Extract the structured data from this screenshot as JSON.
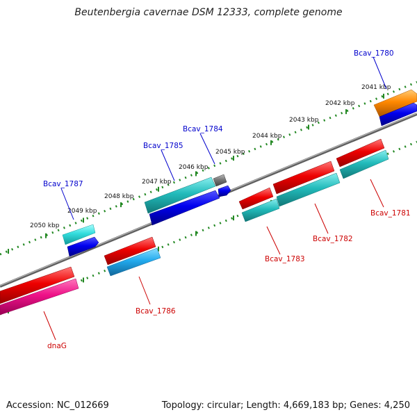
{
  "title": "Beutenbergia cavernae DSM 12333, complete genome",
  "accession": "Accession: NC_012669",
  "summary": "Topology: circular; Length: 4,669,183 bp; Genes: 4,250",
  "colors": {
    "forward_label": "#0000cc",
    "reverse_label": "#cc0000",
    "backbone": "#777777",
    "ticks": "#228822"
  },
  "kbp_labels": [
    "2041 kbp",
    "2042 kbp",
    "2043 kbp",
    "2044 kbp",
    "2045 kbp",
    "2046 kbp",
    "2047 kbp",
    "2048 kbp",
    "2049 kbp",
    "2050 kbp"
  ],
  "genes": [
    {
      "id": "Bcav_1780",
      "label": "Bcav_1780",
      "strand": "forward"
    },
    {
      "id": "Bcav_1781",
      "label": "Bcav_1781",
      "strand": "reverse"
    },
    {
      "id": "Bcav_1782",
      "label": "Bcav_1782",
      "strand": "reverse"
    },
    {
      "id": "Bcav_1783",
      "label": "Bcav_1783",
      "strand": "reverse"
    },
    {
      "id": "Bcav_1784",
      "label": "Bcav_1784",
      "strand": "forward"
    },
    {
      "id": "Bcav_1785",
      "label": "Bcav_1785",
      "strand": "forward"
    },
    {
      "id": "Bcav_1786",
      "label": "Bcav_1786",
      "strand": "reverse"
    },
    {
      "id": "Bcav_1787",
      "label": "Bcav_1787",
      "strand": "forward"
    },
    {
      "id": "dnaG",
      "label": "dnaG",
      "strand": "reverse"
    }
  ]
}
